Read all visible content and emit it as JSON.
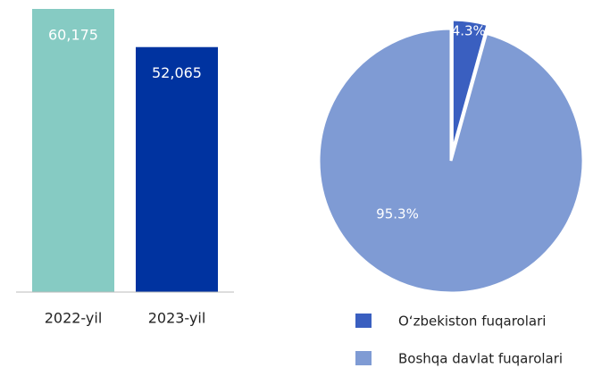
{
  "chart_data": [
    {
      "type": "bar",
      "categories": [
        "2022-yil",
        "2023-yil"
      ],
      "values": [
        60175,
        52065
      ],
      "value_labels": [
        "60,175",
        "52,065"
      ],
      "colors": [
        "#86cbc3",
        "#0033a0"
      ]
    },
    {
      "type": "pie",
      "labels": [
        "O‘zbekiston fuqarolari",
        "Boshqa davlat fuqarolari"
      ],
      "values": [
        4.3,
        95.3
      ],
      "value_labels": [
        "4.3%",
        "95.3%"
      ],
      "colors": [
        "#3a5fc0",
        "#7f9bd4"
      ],
      "legend": "bottom"
    }
  ]
}
